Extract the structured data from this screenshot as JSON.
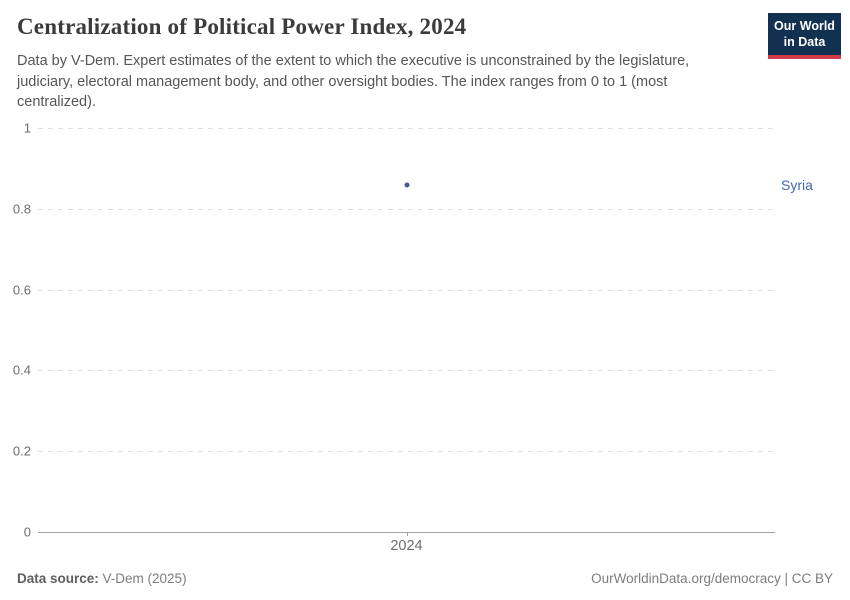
{
  "header": {
    "title": "Centralization of Political Power Index, 2024",
    "subtitle": "Data by V-Dem. Expert estimates of the extent to which the executive is unconstrained by the legislature, judiciary, electoral management body, and other oversight bodies. The index ranges from 0 to 1 (most centralized).",
    "logo": {
      "line1": "Our World",
      "line2": "in Data"
    }
  },
  "chart_data": {
    "type": "scatter",
    "title": "Centralization of Political Power Index, 2024",
    "x": [
      2024
    ],
    "xtick_labels": [
      "2024"
    ],
    "series": [
      {
        "name": "Syria",
        "values": [
          0.86
        ]
      }
    ],
    "entity_label": "Syria",
    "xlabel": "",
    "ylabel": "",
    "ylim": [
      0,
      1
    ],
    "yticks": [
      0,
      0.2,
      0.4,
      0.6,
      0.8,
      1
    ],
    "grid": "horizontal-dashed",
    "legend_position": "right-of-point",
    "point_color": "#44598f",
    "label_color": "#4169ab"
  },
  "colors": {
    "logo_bg": "#12304f",
    "logo_bar": "#d13c4b",
    "gridline": "#dedede",
    "axis_line": "#a3a3a3",
    "title_text": "#3b3b3b",
    "subtitle_text": "#565656"
  },
  "footer": {
    "source_label": "Data source:",
    "source_value": " V-Dem (2025)",
    "rights": "OurWorldinData.org/democracy | CC BY"
  }
}
